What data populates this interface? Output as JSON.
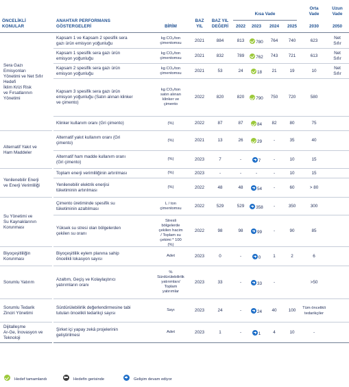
{
  "header": {
    "col_priority": [
      "ÖNCELİKLİ",
      "KONULAR"
    ],
    "col_kpi": [
      "ANAHTAR PERFORMANS",
      "GÖSTERGELERİ"
    ],
    "col_unit": "BİRİM",
    "col_base_year": [
      "BAZ",
      "YIL"
    ],
    "col_base_value": [
      "BAZ YIL",
      "DEĞERİ"
    ],
    "short_term": "Kısa Vade",
    "mid_term": [
      "Orta",
      "Vade"
    ],
    "long_term": [
      "Uzun",
      "Vade"
    ],
    "years": [
      "2022",
      "2023",
      "2024",
      "2025",
      "2030",
      "2050"
    ]
  },
  "groups": [
    {
      "label": [
        "Sera Gazı",
        "Emisyonları",
        "Yönetimi ve Net Sıfır",
        "Hedefi",
        "İklim Krizi Risk",
        "ve Fırsatlarının",
        "Yönetimi"
      ]
    },
    {
      "label": [
        "Alternatif Yakıt ve",
        "Ham Maddeler"
      ]
    },
    {
      "label": [
        "Yenilenebilir Enerji",
        "ve Enerji Verimliliği"
      ]
    },
    {
      "label": [
        "Su Yönetimi ve",
        "Su Kaynaklarının",
        "Korunması"
      ]
    },
    {
      "label": [
        "Biyoçeşitliliğin",
        "Korunması"
      ]
    },
    {
      "label": [
        "Sorumlu Yatırım"
      ]
    },
    {
      "label": [
        "Sorumlu Tedarik",
        "Zinciri Yönetimi"
      ]
    },
    {
      "label": [
        "Dijitalleşme",
        "Ar-Ge, İnovasyon ve",
        "Teknoloji"
      ]
    }
  ],
  "rows": [
    {
      "kpi": [
        "Kapsam 1 ve Kapsam 2 spesifik sera",
        "gazı ürün emisyon yoğunluğu"
      ],
      "unit": [
        "kg CO₂/ton",
        "çimentomsu"
      ],
      "base_year": "2021",
      "base_value": "884",
      "y2022": "813",
      "y2023": "780",
      "y2023_icon": "green",
      "y2024": "764",
      "y2025": "740",
      "y2030": "623",
      "y2050": [
        "Net",
        "Sıfır"
      ]
    },
    {
      "kpi": [
        "Kapsam 1 spesifik sera gazı ürün",
        "emisyon yoğunluğu"
      ],
      "unit": [
        "kg CO₂/ton",
        "çimentomsu"
      ],
      "base_year": "2021",
      "base_value": "832",
      "y2022": "789",
      "y2023": "762",
      "y2023_icon": "green",
      "y2024": "743",
      "y2025": "721",
      "y2030": "613",
      "y2050": [
        "Net",
        "Sıfır"
      ]
    },
    {
      "kpi": [
        "Kapsam 2 spesifik sera gazı ürün",
        "emisyon yoğunluğu"
      ],
      "unit": [
        "kg CO₂/ton",
        "çimentomsu"
      ],
      "base_year": "2021",
      "base_value": "53",
      "y2022": "24",
      "y2023": "18",
      "y2023_icon": "green",
      "y2024": "21",
      "y2025": "19",
      "y2030": "10",
      "y2050": [
        "Net",
        "Sıfır"
      ]
    },
    {
      "kpi": [
        "Kapsam 3 spesifik sera gazı ürün",
        "emisyon yoğunluğu (Satın alınan klinker",
        "ve çimento)"
      ],
      "unit": [
        "kg CO₂/ton",
        "satın alınan",
        "klinker ve",
        "çimento"
      ],
      "base_year": "2022",
      "base_value": "820",
      "y2022": "820",
      "y2023": "790",
      "y2023_icon": "green",
      "y2024": "750",
      "y2025": "720",
      "y2030": "580",
      "y2050": [
        ""
      ]
    },
    {
      "kpi": [
        "Klinker kullanım oranı (Gri çimento)"
      ],
      "unit": [
        "(%)"
      ],
      "base_year": "2022",
      "base_value": "87",
      "y2022": "87",
      "y2023": "84",
      "y2023_icon": "green",
      "y2024": "82",
      "y2025": "80",
      "y2030": "75",
      "y2050": [
        ""
      ]
    },
    {
      "kpi": [
        "Alternatif yakıt kullanım oranı (Gri",
        "çimento)"
      ],
      "unit": [
        "(%)"
      ],
      "base_year": "2021",
      "base_value": "13",
      "y2022": "26",
      "y2023": "29",
      "y2023_icon": "green",
      "y2024": "-",
      "y2025": "35",
      "y2030": "40",
      "y2050": [
        ""
      ]
    },
    {
      "kpi": [
        "Alternatif ham madde kullanım oranı",
        "(Gri çimento)"
      ],
      "unit": [
        "(%)"
      ],
      "base_year": "2023",
      "base_value": "7",
      "y2022": "-",
      "y2023": "7",
      "y2023_icon": "blue",
      "y2024": "-",
      "y2025": "10",
      "y2030": "15",
      "y2050": [
        ""
      ]
    },
    {
      "kpi": [
        "Toplam enerji verimliliğinin artırılması"
      ],
      "unit": [
        "(%)"
      ],
      "base_year": "2023",
      "base_value": "-",
      "y2022": "-",
      "y2023": "-",
      "y2023_icon": "",
      "y2024": "-",
      "y2025": "10",
      "y2030": "15",
      "y2050": [
        ""
      ]
    },
    {
      "kpi": [
        "Yenilenebilir elektrik enerjisi",
        "tüketiminin artırılması"
      ],
      "unit": [
        "(%)"
      ],
      "base_year": "2022",
      "base_value": "48",
      "y2022": "48",
      "y2023": "54",
      "y2023_icon": "blue",
      "y2024": "-",
      "y2025": "60",
      "y2030": "> 80",
      "y2050": [
        ""
      ]
    },
    {
      "kpi": [
        "Çimento üretiminde spesifik su",
        "tüketiminin azaltılması"
      ],
      "unit": [
        "L / ton",
        "çimentomsu"
      ],
      "base_year": "2022",
      "base_value": "529",
      "y2022": "529",
      "y2023": "358",
      "y2023_icon": "blue",
      "y2024": "-",
      "y2025": "350",
      "y2030": "300",
      "y2050": [
        ""
      ]
    },
    {
      "kpi": [
        "Yüksek su stresi olan bölgelerden",
        "çekilen su oranı"
      ],
      "unit": [
        "Stresli",
        "bölgelerde",
        "çekilen hacim",
        "/ Toplam su",
        "çekimi * 100 (%)"
      ],
      "base_year": "2022",
      "base_value": "98",
      "y2022": "98",
      "y2023": "99",
      "y2023_icon": "blue",
      "y2024": "-",
      "y2025": "90",
      "y2030": "85",
      "y2050": [
        ""
      ]
    },
    {
      "kpi": [
        "Biyoçeşitlilik eylem planına sahip",
        "öncelikli lokasyon sayısı"
      ],
      "unit": [
        "Adet"
      ],
      "base_year": "2023",
      "base_value": "0",
      "y2022": "-",
      "y2023": "0",
      "y2023_icon": "blue",
      "y2024": "1",
      "y2025": "2",
      "y2030": "6",
      "y2050": [
        ""
      ]
    },
    {
      "kpi": [
        "Azaltım, Geçiş ve Kolaylaştırıcı",
        "yatırımların oranı"
      ],
      "unit": [
        "%",
        "Sürdürülebilirlik",
        "yatırımları/",
        "Toplam",
        "yatırımlar"
      ],
      "base_year": "2023",
      "base_value": "33",
      "y2022": "-",
      "y2023": "33",
      "y2023_icon": "blue",
      "y2024": "-",
      "y2025": "",
      "y2030": ">50",
      "y2050": [
        ""
      ]
    },
    {
      "kpi": [
        "Sürdürülebilirlik değerlendirmesine tabi",
        "tutulan  öncelikli tedarikçi sayısı"
      ],
      "unit": [
        "Sayı"
      ],
      "base_year": "2023",
      "base_value": "24",
      "y2022": "-",
      "y2023": "24",
      "y2023_icon": "blue",
      "y2024": "40",
      "y2025": "100",
      "y2030": "Tüm öncelikli tedarikçiler",
      "y2050": [
        ""
      ]
    },
    {
      "kpi": [
        "Şirket içi yapay zekâ projelerinin",
        "geliştirilmesi"
      ],
      "unit": [
        "Adet"
      ],
      "base_year": "2023",
      "base_value": "1",
      "y2022": "-",
      "y2023": "1",
      "y2023_icon": "blue",
      "y2024": "4",
      "y2025": "10",
      "y2030": "-",
      "y2050": [
        ""
      ]
    }
  ],
  "legend": {
    "achieved": "Hedef tamamlandı",
    "behind": "Hedefin gerisinde",
    "in_progress": "Gelişim devam ediyor"
  },
  "colors": {
    "heading": "#1d4f91",
    "text": "#23305a",
    "green": "#9cc93b",
    "blue": "#1f6fc8",
    "dark": "#3b3b3b"
  }
}
